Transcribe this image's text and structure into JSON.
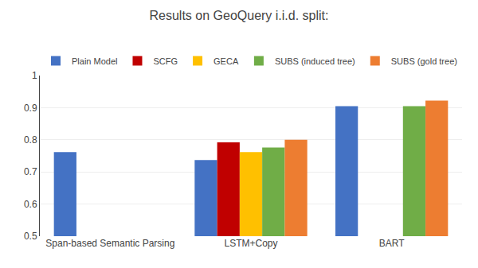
{
  "chart_data": {
    "type": "bar",
    "title": "Results on GeoQuery i.i.d. split:",
    "categories": [
      "Span-based Semantic Parsing",
      "LSTM+Copy",
      "BART"
    ],
    "series": [
      {
        "name": "Plain Model",
        "color": "#4472c4",
        "values": [
          0.762,
          0.737,
          0.905
        ]
      },
      {
        "name": "SCFG",
        "color": "#c00000",
        "values": [
          null,
          0.792,
          null
        ]
      },
      {
        "name": "GECA",
        "color": "#ffc000",
        "values": [
          null,
          0.762,
          null
        ]
      },
      {
        "name": "SUBS (induced tree)",
        "color": "#70ad47",
        "values": [
          null,
          0.776,
          0.905
        ]
      },
      {
        "name": "SUBS (gold tree)",
        "color": "#ed7d31",
        "values": [
          null,
          0.8,
          0.922
        ]
      }
    ],
    "ylim": [
      0.5,
      1.0
    ],
    "yticks": [
      0.5,
      0.6,
      0.7,
      0.8,
      0.9,
      1
    ],
    "grid": true,
    "legend": "top"
  }
}
